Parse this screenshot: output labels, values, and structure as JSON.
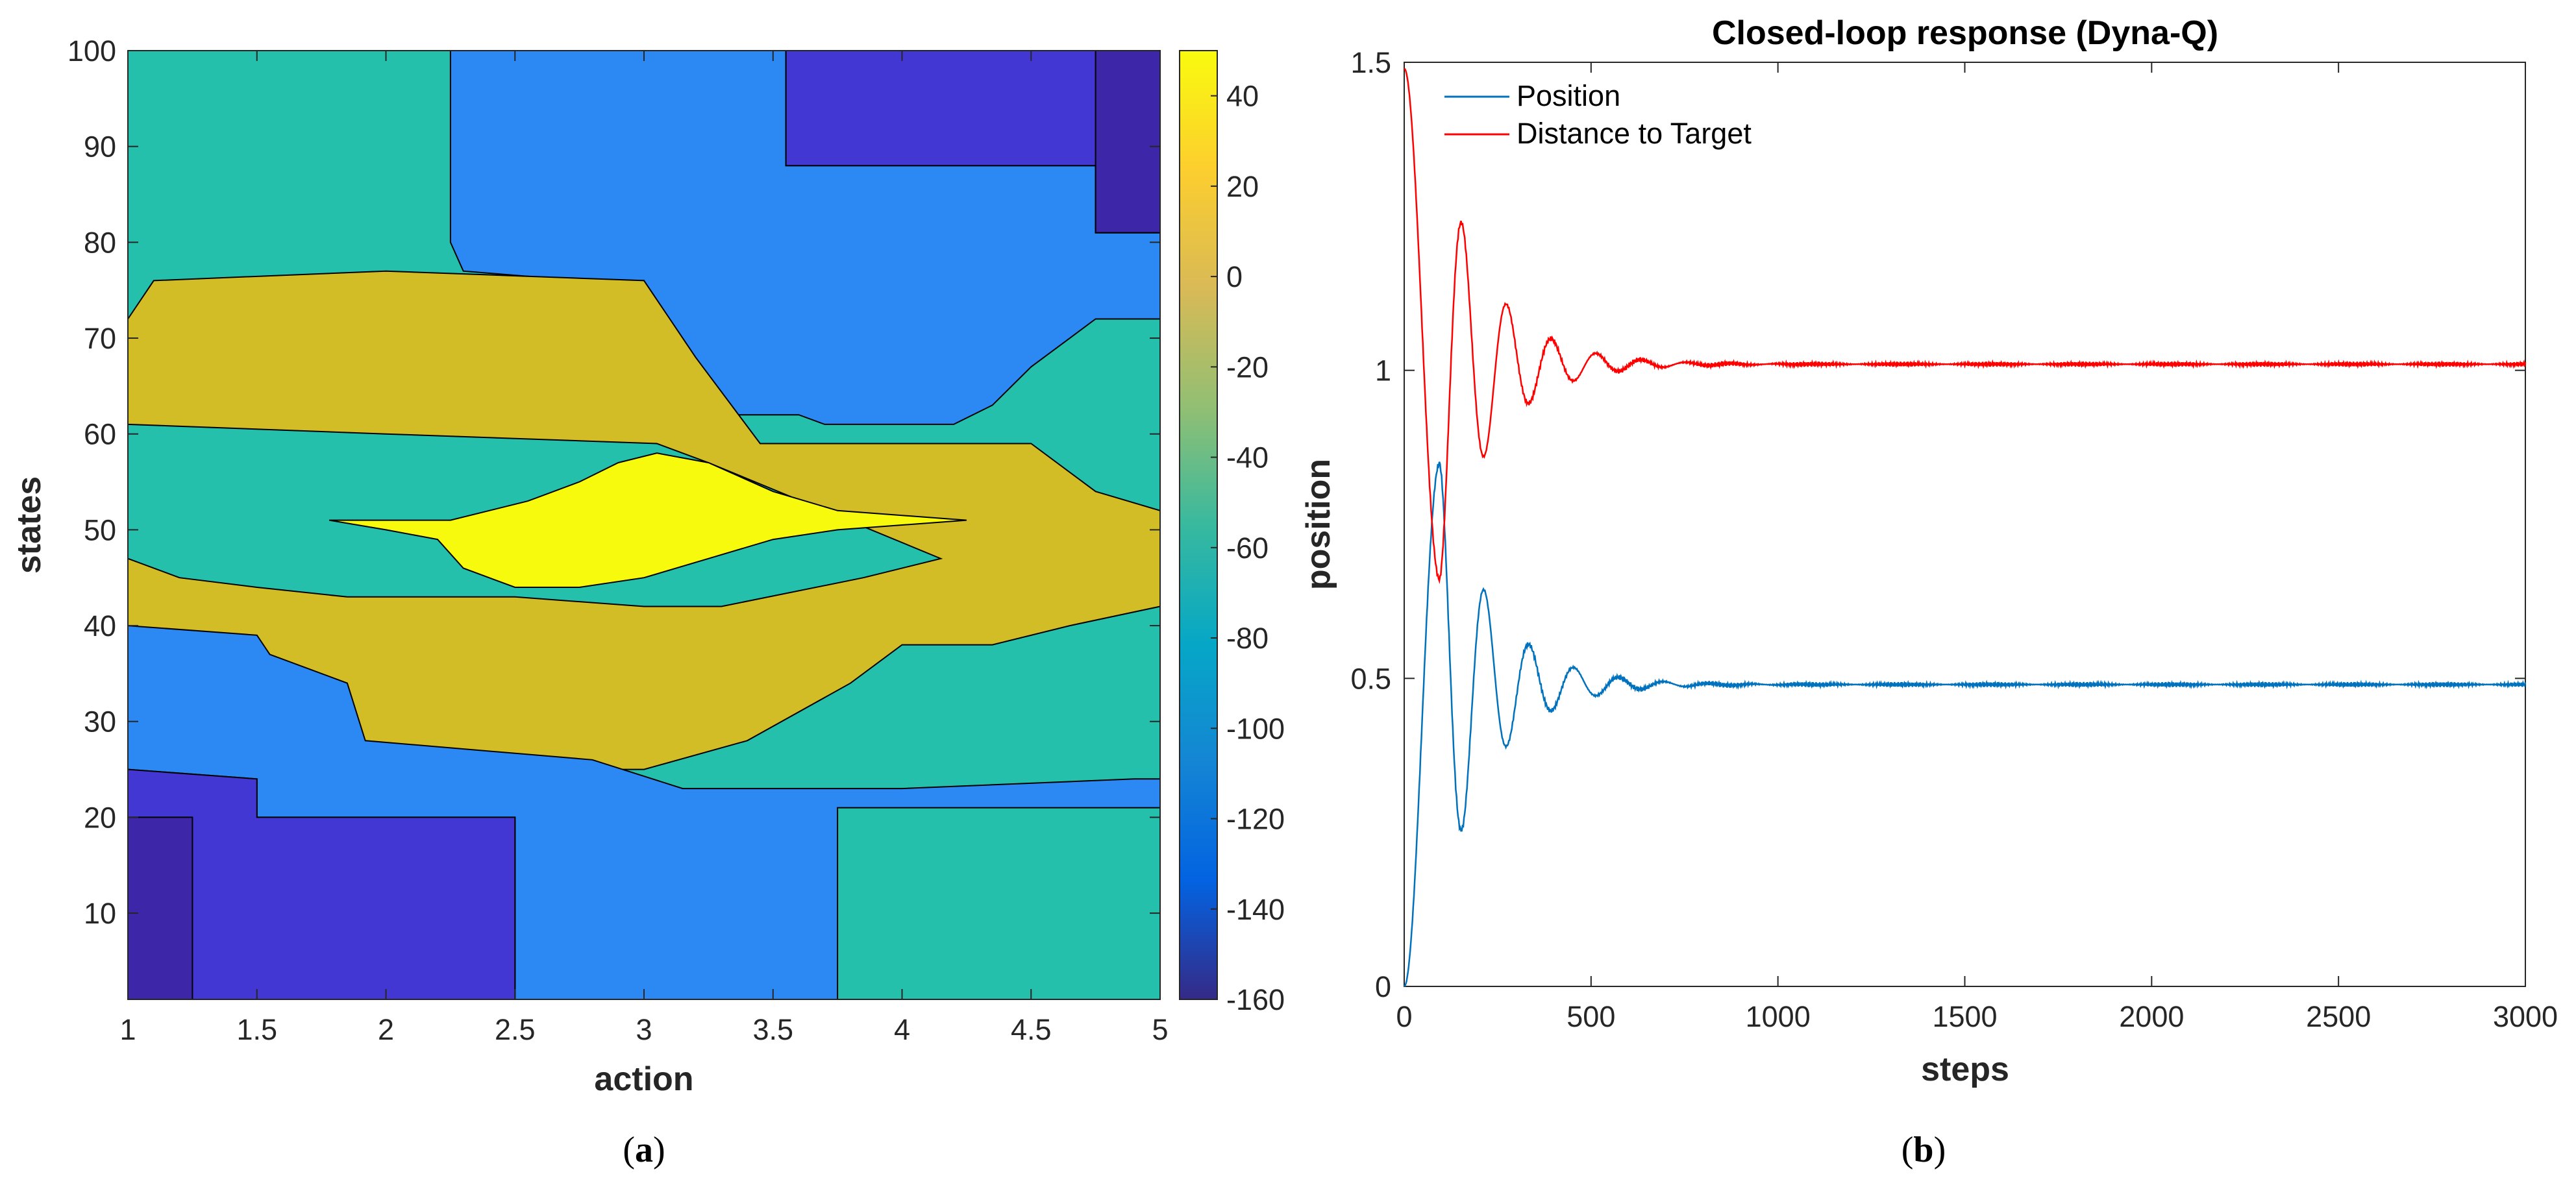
{
  "colors": {
    "level_m160": "#3d26a8",
    "level_m140": "#4337d3",
    "level_m120": "#2c88f3",
    "level_m60": "#25c0ab",
    "level_p20": "#d3bd27",
    "level_p40": "#f8fa0d",
    "position": "#0072bd",
    "distance": "#ff0000",
    "axis": "#262626"
  },
  "chart_data": [
    {
      "type": "contour",
      "xlabel": "action",
      "ylabel": "states",
      "xlim": [
        1,
        5
      ],
      "ylim": [
        1,
        100
      ],
      "xticks": [
        "1",
        "1.5",
        "2",
        "2.5",
        "3",
        "3.5",
        "4",
        "4.5",
        "5"
      ],
      "yticks": [
        "10",
        "20",
        "30",
        "40",
        "50",
        "60",
        "70",
        "80",
        "90",
        "100"
      ],
      "colorbar": {
        "clim": [
          -160,
          50
        ],
        "ticks": [
          "40",
          "20",
          "0",
          "-20",
          "-40",
          "-60",
          "-80",
          "-100",
          "-120",
          "-140",
          "-160"
        ]
      },
      "regions": [
        {
          "name": "upper-center-mid",
          "level": -120,
          "polygon": [
            [
              2.25,
              100
            ],
            [
              3.55,
              100
            ],
            [
              3.55,
              88
            ],
            [
              4.75,
              88
            ],
            [
              4.75,
              81
            ],
            [
              5,
              81
            ],
            [
              5,
              72
            ],
            [
              4.75,
              72
            ],
            [
              4.5,
              67
            ],
            [
              4.35,
              63
            ],
            [
              4.2,
              61
            ],
            [
              3.7,
              61
            ],
            [
              3.6,
              62
            ],
            [
              3.25,
              62
            ],
            [
              3.2,
              64
            ],
            [
              3.15,
              66
            ],
            [
              3.0,
              70
            ],
            [
              3.0,
              76
            ],
            [
              2.75,
              76
            ],
            [
              2.3,
              77
            ],
            [
              2.25,
              80
            ]
          ]
        },
        {
          "name": "top-right-low",
          "level": -140,
          "polygon": [
            [
              3.55,
              100
            ],
            [
              5,
              100
            ],
            [
              5,
              81
            ],
            [
              4.75,
              81
            ],
            [
              4.75,
              88
            ],
            [
              3.55,
              88
            ]
          ]
        },
        {
          "name": "top-right-corner",
          "level": -160,
          "polygon": [
            [
              4.75,
              100
            ],
            [
              5,
              100
            ],
            [
              5,
              81
            ],
            [
              4.75,
              81
            ]
          ]
        },
        {
          "name": "central-band",
          "level": 20,
          "polygon": [
            [
              1,
              72
            ],
            [
              1.1,
              76
            ],
            [
              2.0,
              77
            ],
            [
              3.0,
              76
            ],
            [
              3.1,
              72
            ],
            [
              3.2,
              68
            ],
            [
              3.45,
              59
            ],
            [
              4.5,
              59
            ],
            [
              4.75,
              54
            ],
            [
              5,
              52
            ],
            [
              5,
              42
            ],
            [
              4.65,
              40
            ],
            [
              4.35,
              38
            ],
            [
              4.0,
              38
            ],
            [
              3.8,
              34
            ],
            [
              3.4,
              28
            ],
            [
              3.0,
              25
            ],
            [
              2.4,
              25
            ],
            [
              2.0,
              27
            ],
            [
              1.75,
              29
            ],
            [
              1.45,
              34
            ],
            [
              1.1,
              38
            ],
            [
              1,
              40
            ],
            [
              1,
              47
            ],
            [
              1.2,
              45
            ],
            [
              1.5,
              44
            ],
            [
              1.85,
              43
            ],
            [
              2.5,
              43
            ],
            [
              3.0,
              42
            ],
            [
              3.3,
              42
            ],
            [
              3.85,
              45
            ],
            [
              4.15,
              47
            ],
            [
              3.25,
              57
            ],
            [
              3.05,
              59
            ],
            [
              2.0,
              60
            ],
            [
              1.0,
              61
            ]
          ]
        },
        {
          "name": "center-peak",
          "level": 40,
          "polygon": [
            [
              1.78,
              51
            ],
            [
              2.25,
              51
            ],
            [
              2.55,
              53
            ],
            [
              2.75,
              55
            ],
            [
              2.9,
              57
            ],
            [
              3.05,
              58
            ],
            [
              3.25,
              57
            ],
            [
              3.5,
              54
            ],
            [
              3.75,
              52
            ],
            [
              4.25,
              51
            ],
            [
              3.75,
              50
            ],
            [
              3.5,
              49
            ],
            [
              3.25,
              47
            ],
            [
              3.0,
              45
            ],
            [
              2.75,
              44
            ],
            [
              2.5,
              44
            ],
            [
              2.3,
              46
            ],
            [
              2.2,
              49
            ],
            [
              2.0,
              50
            ]
          ]
        },
        {
          "name": "lower-mid",
          "level": -120,
          "polygon": [
            [
              1,
              40
            ],
            [
              1.5,
              39
            ],
            [
              1.55,
              37
            ],
            [
              1.85,
              34
            ],
            [
              1.92,
              28
            ],
            [
              2.8,
              26
            ],
            [
              3.15,
              23
            ],
            [
              4.0,
              23
            ],
            [
              4.9,
              24
            ],
            [
              5,
              24
            ],
            [
              5,
              1
            ],
            [
              2.5,
              1
            ],
            [
              2.5,
              20
            ],
            [
              1.5,
              20
            ],
            [
              1.5,
              24
            ],
            [
              1,
              25
            ]
          ]
        },
        {
          "name": "bottom-left-low",
          "level": -140,
          "polygon": [
            [
              1,
              25
            ],
            [
              1.5,
              24
            ],
            [
              1.5,
              20
            ],
            [
              2.5,
              20
            ],
            [
              2.5,
              1
            ],
            [
              1,
              1
            ]
          ]
        },
        {
          "name": "bottom-left-corner",
          "level": -160,
          "polygon": [
            [
              1,
              20
            ],
            [
              1.25,
              20
            ],
            [
              1.25,
              1
            ],
            [
              1,
              1
            ]
          ]
        },
        {
          "name": "bottom-right-green",
          "level": -60,
          "polygon": [
            [
              3.75,
              21
            ],
            [
              5,
              21
            ],
            [
              5,
              1
            ],
            [
              3.75,
              1
            ]
          ]
        }
      ]
    },
    {
      "type": "line",
      "title": "Closed-loop response (Dyna-Q)",
      "xlabel": "steps",
      "ylabel": "position",
      "xlim": [
        0,
        3000
      ],
      "ylim": [
        0,
        1.5
      ],
      "xticks": [
        "0",
        "500",
        "1000",
        "1500",
        "2000",
        "2500",
        "3000"
      ],
      "yticks": [
        "0",
        "0.5",
        "1",
        "1.5"
      ],
      "legend_position": "top-left",
      "series": [
        {
          "name": "Position",
          "color": "#0072bd",
          "start": 0.0,
          "final": 0.49,
          "first_peak": 0.85,
          "first_peak_step": 95,
          "period_steps": 120,
          "decay_steps": 140,
          "ripple": 0.004
        },
        {
          "name": "Distance to Target",
          "color": "#ff0000",
          "start": 1.49,
          "final": 1.01,
          "first_peak": 0.66,
          "first_peak_step": 95,
          "period_steps": 120,
          "decay_steps": 140,
          "ripple": 0.004
        }
      ]
    }
  ],
  "captions": {
    "left": "a",
    "right": "b"
  }
}
